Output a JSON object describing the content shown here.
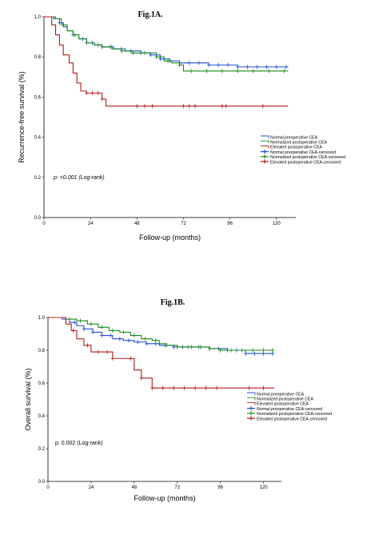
{
  "chart_data": [
    {
      "type": "line",
      "title": "Fig.1A.",
      "xlabel": "Follow-up (months)",
      "ylabel": "Recurrence-free survival (%)",
      "xlim": [
        0,
        130
      ],
      "ylim": [
        0,
        1.0
      ],
      "xticks": [
        "0",
        "24",
        "48",
        "72",
        "96",
        "120"
      ],
      "yticks": [
        "0.0",
        "0.2",
        "0.4",
        "0.6",
        "0.8",
        "1.0"
      ],
      "annotation": "p: <0.001 (Log-rank)",
      "legend_position": "right",
      "legend": [
        {
          "label": "Normal preoperative CEA",
          "kind": "line",
          "color": "#1f4fd6"
        },
        {
          "label": "Normalized postoperative CEA",
          "kind": "line",
          "color": "#1a8a1a"
        },
        {
          "label": "Elevated postoperative CEA",
          "kind": "line",
          "color": "#b01c1c"
        },
        {
          "label": "Normal preoperative CEA-censored",
          "kind": "cross",
          "color": "#1f4fd6"
        },
        {
          "label": "Normalized postoperative CEA-censored",
          "kind": "cross",
          "color": "#1a8a1a"
        },
        {
          "label": "Elevated postoperative CEA-censored",
          "kind": "cross",
          "color": "#b01c1c"
        }
      ],
      "series": [
        {
          "color": "#1f4fd6",
          "x": [
            0,
            5,
            8,
            10,
            12,
            15,
            18,
            22,
            26,
            30,
            36,
            42,
            50,
            55,
            60,
            65,
            70,
            75,
            85,
            100,
            115,
            126
          ],
          "y": [
            1.0,
            0.99,
            0.97,
            0.95,
            0.93,
            0.91,
            0.89,
            0.87,
            0.86,
            0.85,
            0.84,
            0.83,
            0.82,
            0.81,
            0.79,
            0.78,
            0.77,
            0.77,
            0.76,
            0.75,
            0.75,
            0.75
          ],
          "censored_x": [
            8,
            15,
            20,
            25,
            30,
            35,
            40,
            45,
            50,
            55,
            60,
            65,
            70,
            75,
            80,
            85,
            90,
            95,
            100,
            105,
            110,
            115,
            120,
            125
          ]
        },
        {
          "color": "#1a8a1a",
          "x": [
            0,
            6,
            9,
            12,
            15,
            18,
            22,
            26,
            30,
            35,
            40,
            45,
            52,
            58,
            62,
            66,
            70,
            72,
            80,
            100,
            126
          ],
          "y": [
            1.0,
            0.99,
            0.96,
            0.93,
            0.91,
            0.89,
            0.87,
            0.86,
            0.85,
            0.84,
            0.83,
            0.82,
            0.82,
            0.8,
            0.78,
            0.77,
            0.76,
            0.73,
            0.73,
            0.73,
            0.73
          ],
          "censored_x": [
            10,
            16,
            22,
            28,
            34,
            40,
            46,
            52,
            58,
            64,
            70,
            76,
            84,
            92,
            100,
            108,
            116,
            124
          ]
        },
        {
          "color": "#b01c1c",
          "x": [
            0,
            4,
            6,
            8,
            10,
            13,
            15,
            17,
            19,
            22,
            30,
            32,
            126
          ],
          "y": [
            1.0,
            0.96,
            0.91,
            0.86,
            0.81,
            0.77,
            0.72,
            0.67,
            0.63,
            0.62,
            0.59,
            0.555,
            0.555
          ],
          "censored_x": [
            22,
            25,
            28,
            30,
            48,
            52,
            56,
            72,
            75,
            78,
            92,
            94,
            113
          ]
        }
      ]
    },
    {
      "type": "line",
      "title": "Fig.1B.",
      "xlabel": "Follow-up (months)",
      "ylabel": "Overall survival (%)",
      "xlim": [
        0,
        130
      ],
      "ylim": [
        0,
        1.0
      ],
      "xticks": [
        "0",
        "24",
        "48",
        "72",
        "96",
        "120"
      ],
      "yticks": [
        "0.0",
        "0.2",
        "0.4",
        "0.6",
        "0.8",
        "1.0"
      ],
      "annotation": "p: 0.002 (Log-rank)",
      "legend_position": "right",
      "legend": [
        {
          "label": "Normal preoperative CEA",
          "kind": "line",
          "color": "#1f4fd6"
        },
        {
          "label": "Normalized postoperative CEA",
          "kind": "line",
          "color": "#1a8a1a"
        },
        {
          "label": "Elevated postoperative CEA",
          "kind": "line",
          "color": "#b01c1c"
        },
        {
          "label": "Normal preoperative CEA-censored",
          "kind": "cross",
          "color": "#1f4fd6"
        },
        {
          "label": "Normalized postoperative CEA-censored",
          "kind": "cross",
          "color": "#1a8a1a"
        },
        {
          "label": "Elevated postoperative CEA-censored",
          "kind": "cross",
          "color": "#b01c1c"
        }
      ],
      "series": [
        {
          "color": "#1f4fd6",
          "x": [
            0,
            8,
            12,
            16,
            20,
            25,
            30,
            36,
            42,
            48,
            55,
            62,
            70,
            80,
            90,
            100,
            110,
            126
          ],
          "y": [
            1.0,
            0.99,
            0.97,
            0.95,
            0.93,
            0.91,
            0.89,
            0.87,
            0.86,
            0.85,
            0.84,
            0.83,
            0.82,
            0.82,
            0.81,
            0.8,
            0.78,
            0.78
          ],
          "censored_x": [
            10,
            15,
            20,
            25,
            30,
            35,
            40,
            45,
            50,
            55,
            60,
            65,
            70,
            75,
            80,
            85,
            90,
            95,
            100,
            105,
            110,
            115,
            120,
            125
          ]
        },
        {
          "color": "#1a8a1a",
          "x": [
            0,
            10,
            16,
            22,
            28,
            34,
            40,
            46,
            52,
            58,
            62,
            66,
            72,
            80,
            90,
            96,
            110,
            126
          ],
          "y": [
            1.0,
            0.99,
            0.98,
            0.96,
            0.94,
            0.92,
            0.91,
            0.89,
            0.87,
            0.86,
            0.84,
            0.83,
            0.82,
            0.82,
            0.81,
            0.8,
            0.8,
            0.8
          ],
          "censored_x": [
            12,
            18,
            24,
            30,
            36,
            42,
            48,
            54,
            60,
            66,
            72,
            78,
            84,
            90,
            96,
            102,
            108,
            114,
            120,
            125
          ]
        },
        {
          "color": "#b01c1c",
          "x": [
            0,
            10,
            13,
            16,
            20,
            24,
            30,
            36,
            40,
            48,
            52,
            58,
            126
          ],
          "y": [
            1.0,
            0.96,
            0.92,
            0.87,
            0.83,
            0.79,
            0.79,
            0.75,
            0.75,
            0.68,
            0.63,
            0.57,
            0.57
          ],
          "censored_x": [
            14,
            22,
            28,
            33,
            36,
            46,
            52,
            58,
            64,
            70,
            76,
            82,
            88,
            94,
            112,
            120
          ]
        }
      ]
    }
  ]
}
